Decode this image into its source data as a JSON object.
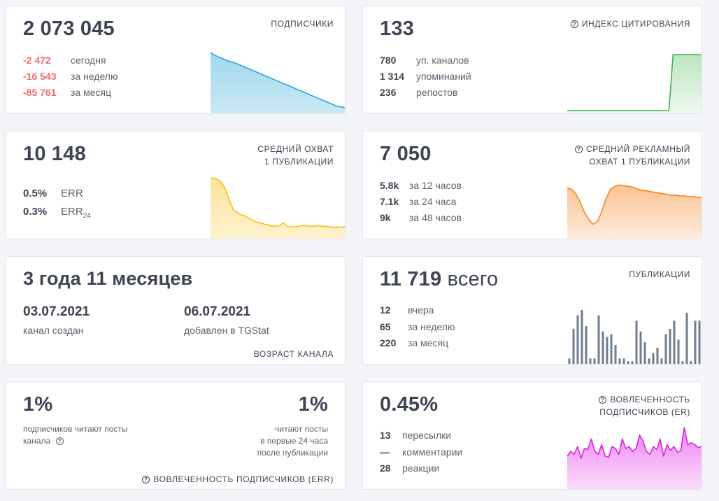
{
  "subscribers": {
    "value": "2 073 045",
    "title": "ПОДПИСЧИКИ",
    "rows": [
      {
        "value": "-2 472",
        "label": "сегодня"
      },
      {
        "value": "-16 543",
        "label": "за неделю"
      },
      {
        "value": "-85 761",
        "label": "за месяц"
      }
    ],
    "color": "#29a7d5"
  },
  "citation": {
    "value": "133",
    "title": "ИНДЕКС ЦИТИРОВАНИЯ",
    "rows": [
      {
        "value": "780",
        "label": "уп. каналов"
      },
      {
        "value": "1 314",
        "label": "упоминаний"
      },
      {
        "value": "236",
        "label": "репостов"
      }
    ],
    "color": "#3cb54a"
  },
  "reach": {
    "value": "10 148",
    "title1": "СРЕДНИЙ ОХВАТ",
    "title2": "1 ПУБЛИКАЦИИ",
    "rows": [
      {
        "value": "0.5%",
        "label": "ERR"
      },
      {
        "value": "0.3%",
        "label": "ERR",
        "sub": "24"
      }
    ],
    "color": "#f7bf17"
  },
  "ad_reach": {
    "value": "7 050",
    "title1": "СРЕДНИЙ РЕКЛАМНЫЙ",
    "title2": "ОХВАТ 1 ПУБЛИКАЦИИ",
    "rows": [
      {
        "value": "5.8k",
        "label": "за 12 часов"
      },
      {
        "value": "7.1k",
        "label": "за 24 часа"
      },
      {
        "value": "9k",
        "label": "за 48 часов"
      }
    ],
    "color": "#f5851f"
  },
  "age": {
    "value": "3 года 11 месяцев",
    "created_date": "03.07.2021",
    "created_label": "канал создан",
    "added_date": "06.07.2021",
    "added_label": "добавлен в TGStat",
    "title": "ВОЗРАСТ КАНАЛА"
  },
  "posts": {
    "value": "11 719",
    "value_suffix": "всего",
    "title": "ПУБЛИКАЦИИ",
    "rows": [
      {
        "value": "12",
        "label": "вчера"
      },
      {
        "value": "65",
        "label": "за неделю"
      },
      {
        "value": "220",
        "label": "за месяц"
      }
    ],
    "color": "#6f7d8c"
  },
  "err": {
    "left_value": "1%",
    "left_label1": "подписчиков читают посты",
    "left_label2": "канала",
    "right_value": "1%",
    "right_label1": "читают посты",
    "right_label2": "в первые 24 часа",
    "right_label3": "после публикации",
    "footer": "ВОВЛЕЧЕННОСТЬ ПОДПИСЧИКОВ (ERR)"
  },
  "er": {
    "value": "0.45%",
    "title1": "ВОВЛЕЧЕННОСТЬ",
    "title2": "ПОДПИСЧИКОВ (ER)",
    "rows": [
      {
        "value": "13",
        "label": "пересылки"
      },
      {
        "value": "—",
        "label": "комментарии"
      },
      {
        "value": "28",
        "label": "реакции"
      }
    ],
    "color": "#e11de8"
  },
  "chart_data": [
    {
      "type": "area",
      "name": "subscribers",
      "values": [
        100,
        98.5,
        97.5,
        96.5,
        95.5,
        94.8,
        94,
        93,
        92,
        91,
        90,
        89,
        88,
        87,
        86,
        85,
        84,
        83,
        82,
        81,
        80,
        79,
        78,
        77,
        76,
        75,
        74,
        73,
        72,
        71,
        70.5,
        70
      ]
    },
    {
      "type": "area",
      "name": "citation",
      "values": [
        0,
        0,
        0,
        0,
        0,
        0,
        0,
        0,
        0,
        0,
        0,
        0,
        0,
        0,
        0,
        0,
        0,
        0,
        0,
        0,
        0,
        0,
        0,
        0,
        0,
        0,
        1,
        1,
        1,
        1,
        1,
        1,
        1,
        1
      ]
    },
    {
      "type": "area",
      "name": "reach",
      "values": [
        100,
        99,
        97,
        92,
        82,
        65,
        52,
        48,
        45,
        43,
        40,
        37,
        34,
        33,
        31,
        30,
        28,
        28,
        29,
        33,
        28,
        27,
        27,
        28,
        29,
        29,
        28,
        28,
        29,
        28,
        28,
        27,
        26,
        27,
        26,
        28
      ]
    },
    {
      "type": "area",
      "name": "ad_reach",
      "values": [
        70,
        68,
        62,
        50,
        36,
        26,
        20,
        24,
        38,
        56,
        68,
        72,
        74,
        73,
        72,
        71,
        69,
        67,
        66,
        65,
        64,
        63,
        62,
        61,
        60,
        60,
        59,
        59,
        58,
        58,
        57,
        57
      ]
    },
    {
      "type": "bar",
      "name": "posts",
      "values": [
        2,
        13,
        18,
        20,
        14,
        2,
        2,
        18,
        12,
        10,
        11,
        7,
        2,
        2,
        1,
        1,
        16,
        12,
        8,
        2,
        4,
        6,
        2,
        11,
        13,
        16,
        9,
        1,
        19,
        1,
        16,
        16
      ]
    },
    {
      "type": "area",
      "name": "er",
      "values": [
        50,
        55,
        52,
        60,
        48,
        58,
        57,
        68,
        55,
        52,
        62,
        50,
        49,
        60,
        58,
        52,
        68,
        58,
        60,
        55,
        58,
        72,
        66,
        55,
        52,
        60,
        57,
        68,
        50,
        62,
        56,
        60,
        54,
        56,
        80,
        62,
        64,
        62,
        59,
        60
      ]
    }
  ]
}
